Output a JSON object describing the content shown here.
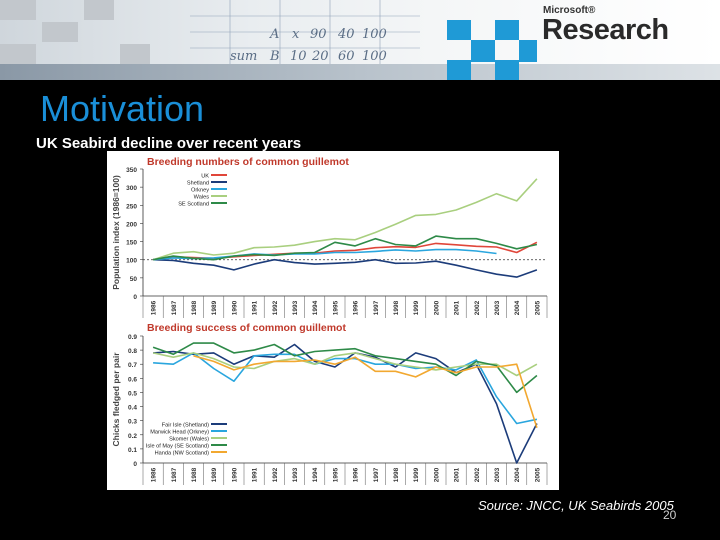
{
  "header": {
    "brand_small": "Microsoft®",
    "brand_big": "Research",
    "doodle_text": [
      "A",
      "x",
      "90",
      "40",
      "100",
      "B",
      "10",
      "20",
      "60",
      "sum",
      "100"
    ]
  },
  "slide": {
    "title": "Motivation",
    "subtitle": "UK Seabird decline over recent years",
    "source": "Source: JNCC, UK Seabirds 2005",
    "page_number": "20"
  },
  "chart_data": [
    {
      "type": "line",
      "title": "Breeding numbers of common guillemot",
      "ylabel": "Population index (1986=100)",
      "xlabel": "",
      "ylim": [
        0,
        350
      ],
      "yticks": [
        "0",
        "50",
        "100",
        "150",
        "200",
        "250",
        "300",
        "350"
      ],
      "categories": [
        "1986",
        "1987",
        "1988",
        "1989",
        "1990",
        "1991",
        "1992",
        "1993",
        "1994",
        "1995",
        "1996",
        "1997",
        "1998",
        "1999",
        "2000",
        "2001",
        "2002",
        "2003",
        "2004",
        "2005"
      ],
      "reference_line": 100,
      "legend_position": "top-left",
      "series": [
        {
          "name": "UK",
          "color": "#e0463a",
          "values": [
            100,
            108,
            106,
            104,
            108,
            112,
            115,
            118,
            118,
            124,
            126,
            133,
            136,
            134,
            145,
            141,
            137,
            135,
            120,
            148
          ]
        },
        {
          "name": "Shetland",
          "color": "#1c3c7a",
          "values": [
            100,
            98,
            90,
            85,
            72,
            88,
            100,
            92,
            88,
            90,
            93,
            100,
            90,
            91,
            96,
            85,
            72,
            60,
            52,
            72
          ]
        },
        {
          "name": "Orkney",
          "color": "#2aa6de",
          "values": [
            100,
            105,
            103,
            105,
            110,
            116,
            113,
            116,
            116,
            120,
            120,
            123,
            127,
            124,
            128,
            128,
            124,
            117,
            null,
            null
          ]
        },
        {
          "name": "Wales",
          "color": "#a9cf7f",
          "values": [
            100,
            118,
            122,
            113,
            118,
            133,
            135,
            140,
            150,
            158,
            155,
            175,
            198,
            222,
            225,
            237,
            258,
            282,
            262,
            323
          ]
        },
        {
          "name": "SE Scotland",
          "color": "#2e8a48",
          "values": [
            100,
            110,
            104,
            100,
            110,
            114,
            112,
            118,
            120,
            148,
            138,
            158,
            142,
            138,
            165,
            158,
            158,
            145,
            130,
            142
          ]
        }
      ]
    },
    {
      "type": "line",
      "title": "Breeding success of common guillemot",
      "ylabel": "Chicks fledged per pair",
      "xlabel": "",
      "ylim": [
        0,
        0.9
      ],
      "yticks": [
        "0",
        "0.1",
        "0.2",
        "0.3",
        "0.4",
        "0.5",
        "0.6",
        "0.7",
        "0.8",
        "0.9"
      ],
      "categories": [
        "1986",
        "1987",
        "1988",
        "1989",
        "1990",
        "1991",
        "1992",
        "1993",
        "1994",
        "1995",
        "1996",
        "1997",
        "1998",
        "1999",
        "2000",
        "2001",
        "2002",
        "2003",
        "2004",
        "2005"
      ],
      "legend_position": "bottom-left",
      "series": [
        {
          "name": "Fair Isle (Shetland)",
          "color": "#1c3c7a",
          "values": [
            0.78,
            0.79,
            0.77,
            0.78,
            0.7,
            0.76,
            0.75,
            0.84,
            0.72,
            0.68,
            0.78,
            0.75,
            0.68,
            0.78,
            0.74,
            0.64,
            0.7,
            0.42,
            0.0,
            0.28
          ]
        },
        {
          "name": "Marwick Head (Orkney)",
          "color": "#2aa6de",
          "values": [
            0.71,
            0.7,
            0.78,
            0.67,
            0.58,
            0.76,
            0.77,
            0.77,
            0.7,
            0.74,
            0.74,
            0.7,
            0.7,
            0.67,
            0.68,
            0.66,
            0.73,
            0.47,
            0.28,
            0.31
          ]
        },
        {
          "name": "Skomer (Wales)",
          "color": "#a9cf7f",
          "values": [
            0.78,
            0.75,
            0.78,
            0.74,
            0.68,
            0.67,
            0.72,
            0.74,
            0.7,
            0.76,
            0.78,
            0.74,
            0.7,
            0.68,
            0.66,
            0.68,
            0.7,
            0.7,
            0.62,
            0.7
          ]
        },
        {
          "name": "Isle of May (SE Scotland)",
          "color": "#2e8a48",
          "values": [
            0.82,
            0.77,
            0.85,
            0.85,
            0.78,
            0.8,
            0.84,
            0.76,
            0.79,
            0.8,
            0.81,
            0.76,
            0.74,
            0.72,
            0.7,
            0.62,
            0.72,
            0.69,
            0.5,
            0.62
          ]
        },
        {
          "name": "Handa (NW Scotland)",
          "color": "#f2a830",
          "values": [
            null,
            null,
            0.76,
            0.72,
            0.66,
            0.7,
            0.72,
            0.72,
            0.73,
            0.7,
            0.75,
            0.65,
            0.65,
            0.61,
            0.68,
            0.64,
            0.68,
            0.68,
            0.7,
            0.25
          ]
        }
      ]
    }
  ]
}
